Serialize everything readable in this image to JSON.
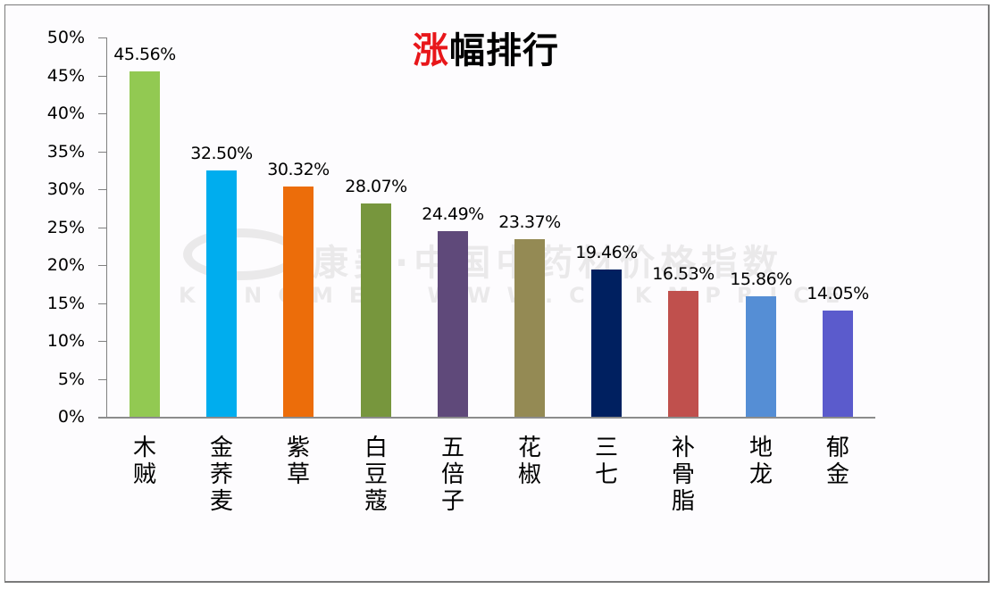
{
  "title": {
    "accent": "涨",
    "rest": "幅排行",
    "accent_color": "#e8161a"
  },
  "watermark": {
    "line1": "康美·中国中药材价格指数",
    "line2": "KANGMEI WWW.CNKMPRICE"
  },
  "y_axis": {
    "ticks": [
      "50%",
      "45%",
      "40%",
      "35%",
      "30%",
      "25%",
      "20%",
      "15%",
      "10%",
      "5%",
      "0%"
    ]
  },
  "bars": [
    {
      "category": "木贼",
      "value": 45.56,
      "label": "45.56%",
      "color": "#92c952"
    },
    {
      "category": "金荞麦",
      "value": 32.5,
      "label": "32.50%",
      "color": "#00adee"
    },
    {
      "category": "紫草",
      "value": 30.32,
      "label": "30.32%",
      "color": "#ec6d0a"
    },
    {
      "category": "白豆蔻",
      "value": 28.07,
      "label": "28.07%",
      "color": "#77963d"
    },
    {
      "category": "五倍子",
      "value": 24.49,
      "label": "24.49%",
      "color": "#5f497a"
    },
    {
      "category": "花椒",
      "value": 23.37,
      "label": "23.37%",
      "color": "#948a54"
    },
    {
      "category": "三七",
      "value": 19.46,
      "label": "19.46%",
      "color": "#002060"
    },
    {
      "category": "补骨脂",
      "value": 16.53,
      "label": "16.53%",
      "color": "#c0504d"
    },
    {
      "category": "地龙",
      "value": 15.86,
      "label": "15.86%",
      "color": "#558ed5"
    },
    {
      "category": "郁金",
      "value": 14.05,
      "label": "14.05%",
      "color": "#5b5bcc"
    }
  ],
  "chart_data": {
    "type": "bar",
    "title": "涨幅排行",
    "categories": [
      "木贼",
      "金荞麦",
      "紫草",
      "白豆蔻",
      "五倍子",
      "花椒",
      "三七",
      "补骨脂",
      "地龙",
      "郁金"
    ],
    "values": [
      45.56,
      32.5,
      30.32,
      28.07,
      24.49,
      23.37,
      19.46,
      16.53,
      15.86,
      14.05
    ],
    "value_labels": [
      "45.56%",
      "32.50%",
      "30.32%",
      "28.07%",
      "24.49%",
      "23.37%",
      "19.46%",
      "16.53%",
      "15.86%",
      "14.05%"
    ],
    "colors": [
      "#92c952",
      "#00adee",
      "#ec6d0a",
      "#77963d",
      "#5f497a",
      "#948a54",
      "#002060",
      "#c0504d",
      "#558ed5",
      "#5b5bcc"
    ],
    "xlabel": "",
    "ylabel": "",
    "ylim": [
      0,
      50
    ],
    "yticks": [
      "0%",
      "5%",
      "10%",
      "15%",
      "20%",
      "25%",
      "30%",
      "35%",
      "40%",
      "45%",
      "50%"
    ],
    "grid": false,
    "legend": null
  }
}
